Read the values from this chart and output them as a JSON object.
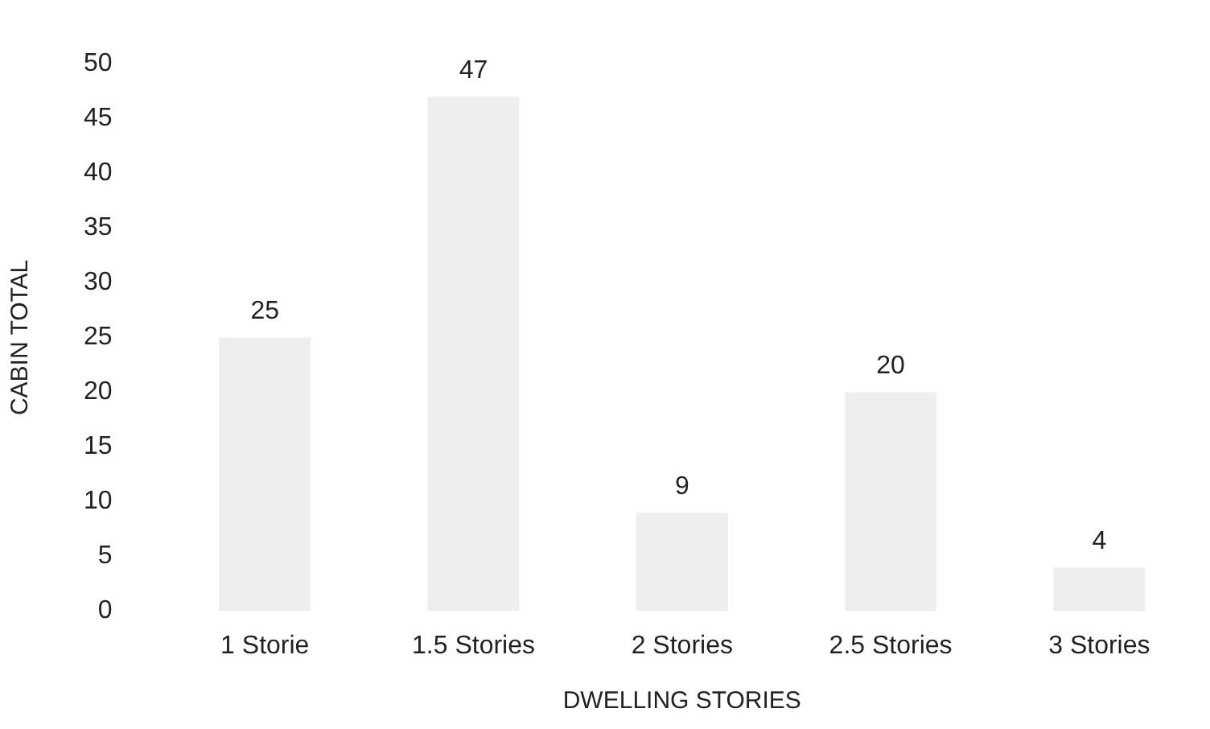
{
  "chart_data": {
    "type": "bar",
    "xlabel": "DWELLING STORIES",
    "ylabel": "CABIN TOTAL",
    "categories": [
      "1 Storie",
      "1.5 Stories",
      "2 Stories",
      "2.5 Stories",
      "3 Stories"
    ],
    "values": [
      25,
      47,
      9,
      20,
      4
    ],
    "color": "#eeeeee",
    "ylim": [
      0,
      50
    ],
    "yticks": [
      0,
      5,
      10,
      15,
      20,
      25,
      30,
      35,
      40,
      45,
      50
    ],
    "grid": false,
    "legend": false,
    "data_labels": true
  }
}
